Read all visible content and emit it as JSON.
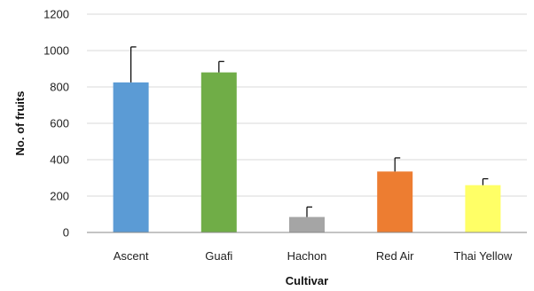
{
  "chart_data": {
    "type": "bar",
    "title": "",
    "xlabel": "Cultivar",
    "ylabel": "No. of fruits",
    "ylim": [
      0,
      1200
    ],
    "yticks": [
      0,
      200,
      400,
      600,
      800,
      1000,
      1200
    ],
    "grid": true,
    "legend": "none",
    "categories": [
      "Ascent",
      "Guafi",
      "Hachon",
      "Red Air",
      "Thai Yellow"
    ],
    "values": [
      825,
      880,
      85,
      335,
      260
    ],
    "error": [
      195,
      60,
      55,
      75,
      35
    ],
    "colors": [
      "#5b9bd5",
      "#70ad47",
      "#a5a5a5",
      "#ed7d31",
      "#ffff66"
    ]
  }
}
